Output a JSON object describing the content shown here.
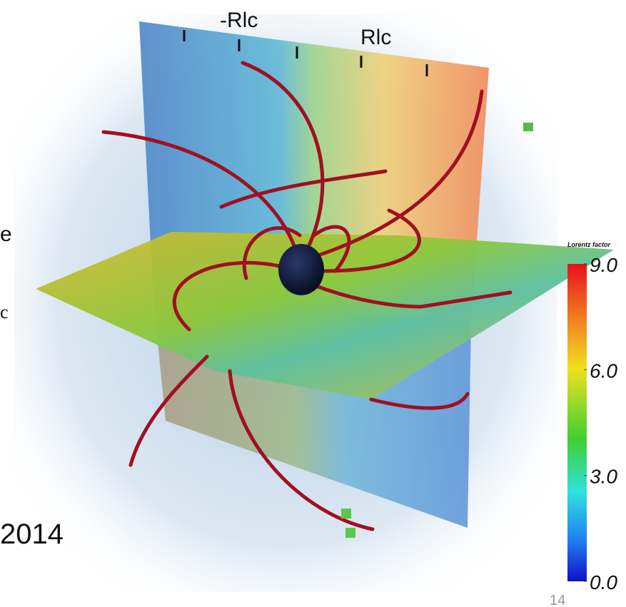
{
  "plane_labels": {
    "left": "-Rlc",
    "right": "Rlc"
  },
  "side_text": {
    "line1": "e",
    "line2": "c",
    "year": "2014"
  },
  "page_number": "14",
  "colorbar": {
    "title": "Lorentz factor",
    "lim": [
      0,
      9
    ],
    "ticks": [
      {
        "value": 9,
        "label": "9.0"
      },
      {
        "value": 6,
        "label": "6.0"
      },
      {
        "value": 3,
        "label": "3.0"
      },
      {
        "value": 0,
        "label": "0.0"
      }
    ]
  }
}
